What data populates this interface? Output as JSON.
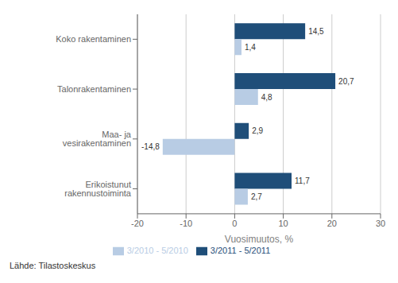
{
  "chart_data": {
    "type": "bar",
    "orientation": "horizontal",
    "categories": [
      "Erikoistunut rakennustoiminta",
      "Maa- ja vesirakentaminen",
      "Talonrakentaminen",
      "Koko rakentaminen"
    ],
    "series": [
      {
        "name": "3/2011 - 5/2011",
        "color": "#1F4E79",
        "values": [
          11.7,
          2.9,
          20.7,
          14.5
        ],
        "value_labels": [
          "11,7",
          "2,9",
          "20,7",
          "14,5"
        ]
      },
      {
        "name": "3/2010 - 5/2010",
        "color": "#B8CCE4",
        "values": [
          2.7,
          -14.8,
          4.8,
          1.4
        ],
        "value_labels": [
          "2,7",
          "-14,8",
          "4,8",
          "1,4"
        ]
      }
    ],
    "xlabel": "Vuosimuutos, %",
    "xlim": [
      -20,
      30
    ],
    "xticks": [
      -20,
      -10,
      0,
      10,
      20,
      30
    ],
    "grid": "x",
    "legend": "bottom",
    "data_labels": true,
    "annotations": [
      "Lähde: Tilastoskeskus"
    ]
  }
}
